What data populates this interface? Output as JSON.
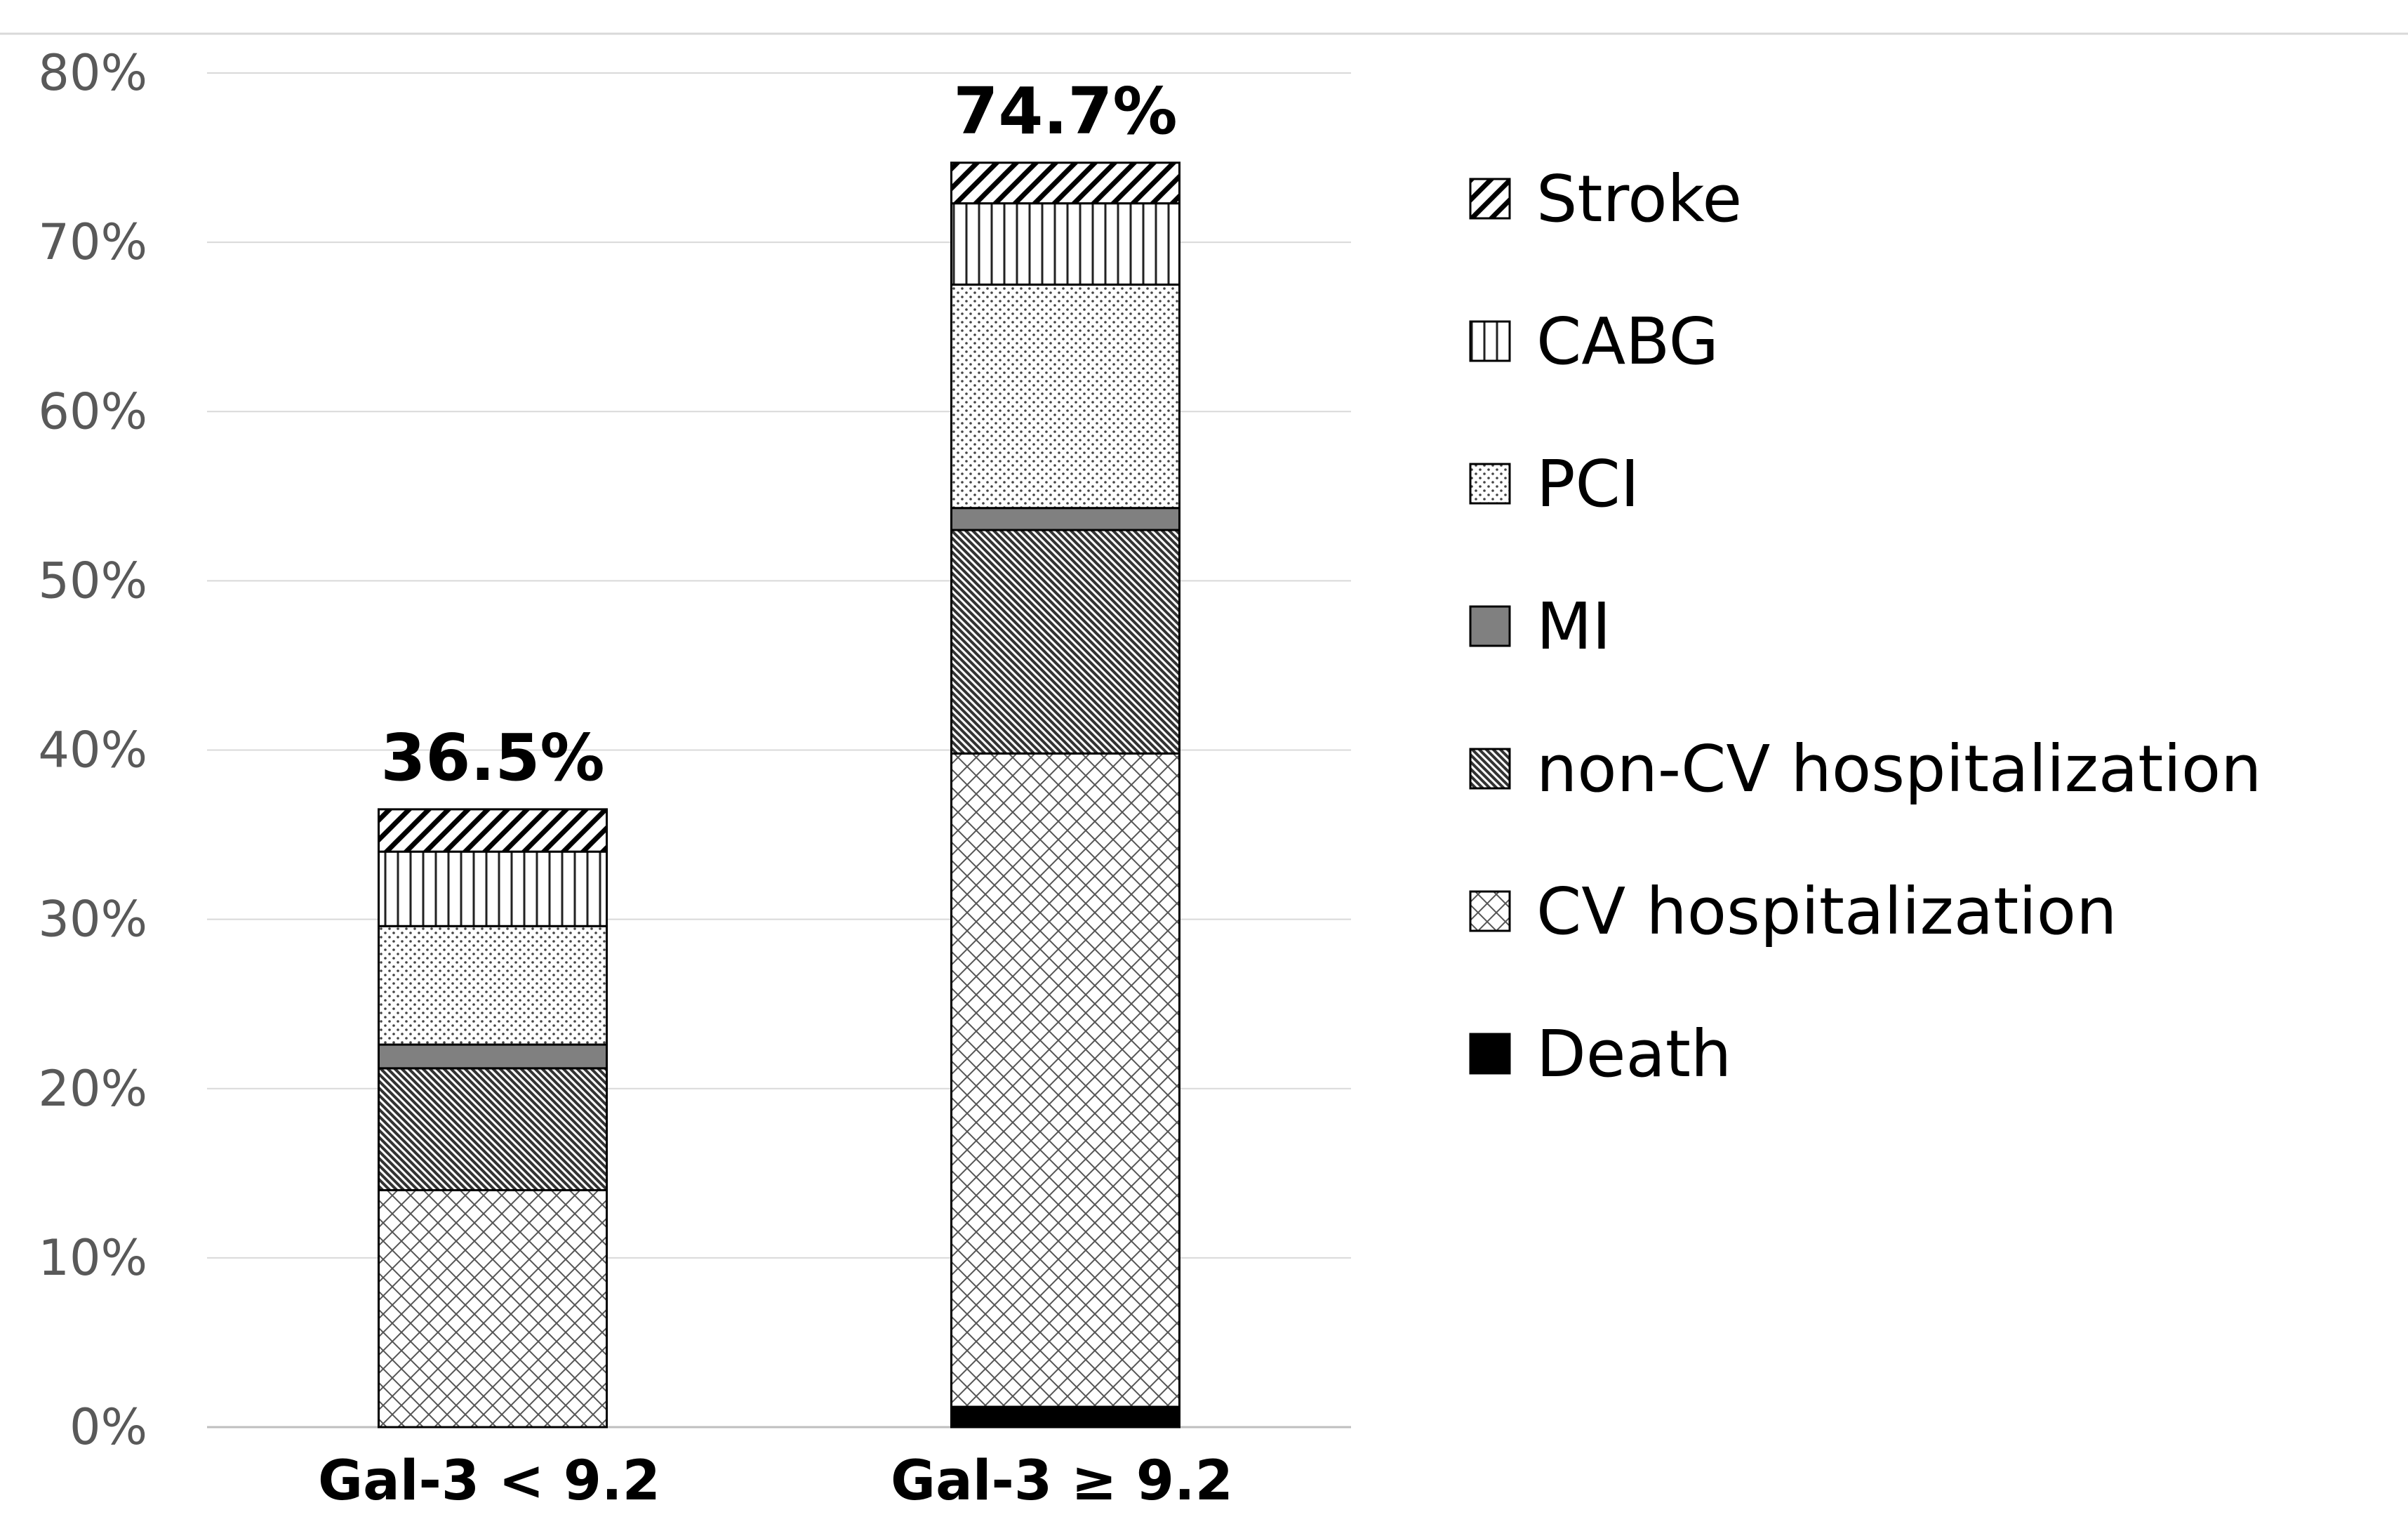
{
  "chart_data": {
    "type": "bar",
    "stacked": true,
    "categories": [
      "Gal-3 < 9.2",
      "Gal-3 ≥ 9.2"
    ],
    "totals": [
      "36.5%",
      "74.7%"
    ],
    "ylim": [
      0,
      80
    ],
    "yticks": [
      "0%",
      "10%",
      "20%",
      "30%",
      "40%",
      "50%",
      "60%",
      "70%",
      "80%"
    ],
    "grid": true,
    "legend_position": "right",
    "series": [
      {
        "name": "Death",
        "values": [
          0.0,
          1.2
        ],
        "pattern": "solid-black"
      },
      {
        "name": "CV hospitalization",
        "values": [
          14.0,
          38.6
        ],
        "pattern": "crosshatch"
      },
      {
        "name": "non-CV hospitalization",
        "values": [
          7.2,
          13.2
        ],
        "pattern": "dense-diagonal"
      },
      {
        "name": "MI",
        "values": [
          1.4,
          1.3
        ],
        "pattern": "solid-gray"
      },
      {
        "name": "PCI",
        "values": [
          7.0,
          13.2
        ],
        "pattern": "dots"
      },
      {
        "name": "CABG",
        "values": [
          4.4,
          4.8
        ],
        "pattern": "vertical-lines"
      },
      {
        "name": "Stroke",
        "values": [
          2.5,
          2.4
        ],
        "pattern": "wide-diagonal"
      }
    ],
    "legend_order": [
      "Stroke",
      "CABG",
      "PCI",
      "MI",
      "non-CV hospitalization",
      "CV hospitalization",
      "Death"
    ]
  }
}
